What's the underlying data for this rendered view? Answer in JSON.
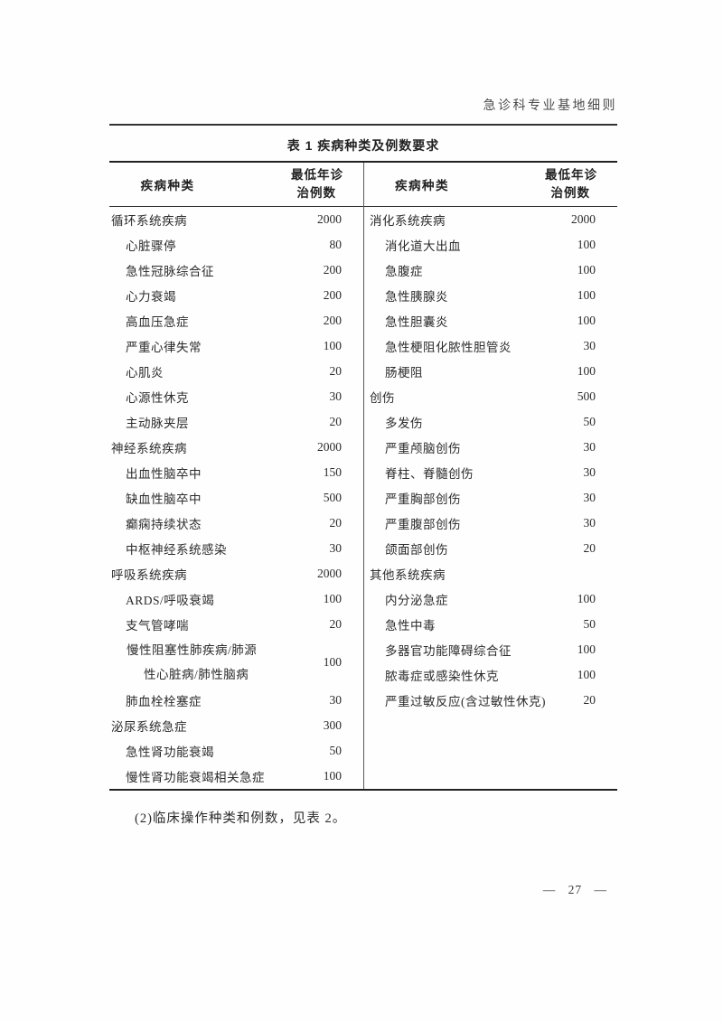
{
  "page": {
    "running_header": "急诊科专业基地细则",
    "paragraph": "(2)临床操作种类和例数，见表 2。",
    "footer_page_number": "— 27 —"
  },
  "table": {
    "title": "表 1  疾病种类及例数要求",
    "header": {
      "disease_type": "疾病种类",
      "min_cases_line1": "最低年诊",
      "min_cases_line2": "治例数"
    },
    "left_rows": [
      {
        "name": "循环系统疾病",
        "value": "2000",
        "category": true
      },
      {
        "name": "心脏骤停",
        "value": "80"
      },
      {
        "name": "急性冠脉综合征",
        "value": "200"
      },
      {
        "name": "心力衰竭",
        "value": "200"
      },
      {
        "name": "高血压急症",
        "value": "200"
      },
      {
        "name": "严重心律失常",
        "value": "100"
      },
      {
        "name": "心肌炎",
        "value": "20"
      },
      {
        "name": "心源性休克",
        "value": "30"
      },
      {
        "name": "主动脉夹层",
        "value": "20"
      },
      {
        "name": "神经系统疾病",
        "value": "2000",
        "category": true
      },
      {
        "name": "出血性脑卒中",
        "value": "150"
      },
      {
        "name": "缺血性脑卒中",
        "value": "500"
      },
      {
        "name": "癫痫持续状态",
        "value": "20"
      },
      {
        "name": "中枢神经系统感染",
        "value": "30"
      },
      {
        "name": "呼吸系统疾病",
        "value": "2000",
        "category": true
      },
      {
        "name": "ARDS/呼吸衰竭",
        "value": "100"
      },
      {
        "name": "支气管哮喘",
        "value": "20"
      },
      {
        "name": "慢性阻塞性肺疾病/肺源性心脏病/肺性脑病",
        "value": "100",
        "wrap": true
      },
      {
        "name": "肺血栓栓塞症",
        "value": "30"
      },
      {
        "name": "泌尿系统急症",
        "value": "300",
        "category": true
      },
      {
        "name": "急性肾功能衰竭",
        "value": "50"
      },
      {
        "name": "慢性肾功能衰竭相关急症",
        "value": "100"
      }
    ],
    "right_rows": [
      {
        "name": "消化系统疾病",
        "value": "2000",
        "category": true
      },
      {
        "name": "消化道大出血",
        "value": "100"
      },
      {
        "name": "急腹症",
        "value": "100"
      },
      {
        "name": "急性胰腺炎",
        "value": "100"
      },
      {
        "name": "急性胆囊炎",
        "value": "100"
      },
      {
        "name": "急性梗阻化脓性胆管炎",
        "value": "30"
      },
      {
        "name": "肠梗阻",
        "value": "100"
      },
      {
        "name": "创伤",
        "value": "500",
        "category": true
      },
      {
        "name": "多发伤",
        "value": "50"
      },
      {
        "name": "严重颅脑创伤",
        "value": "30"
      },
      {
        "name": "脊柱、脊髓创伤",
        "value": "30"
      },
      {
        "name": "严重胸部创伤",
        "value": "30"
      },
      {
        "name": "严重腹部创伤",
        "value": "30"
      },
      {
        "name": "颌面部创伤",
        "value": "20"
      },
      {
        "name": "其他系统疾病",
        "value": "",
        "category": true
      },
      {
        "name": "内分泌急症",
        "value": "100"
      },
      {
        "name": "急性中毒",
        "value": "50"
      },
      {
        "name": "多器官功能障碍综合征",
        "value": "100"
      },
      {
        "name": "脓毒症或感染性休克",
        "value": "100"
      },
      {
        "name": "严重过敏反应(含过敏性休克)",
        "value": "20"
      }
    ]
  }
}
